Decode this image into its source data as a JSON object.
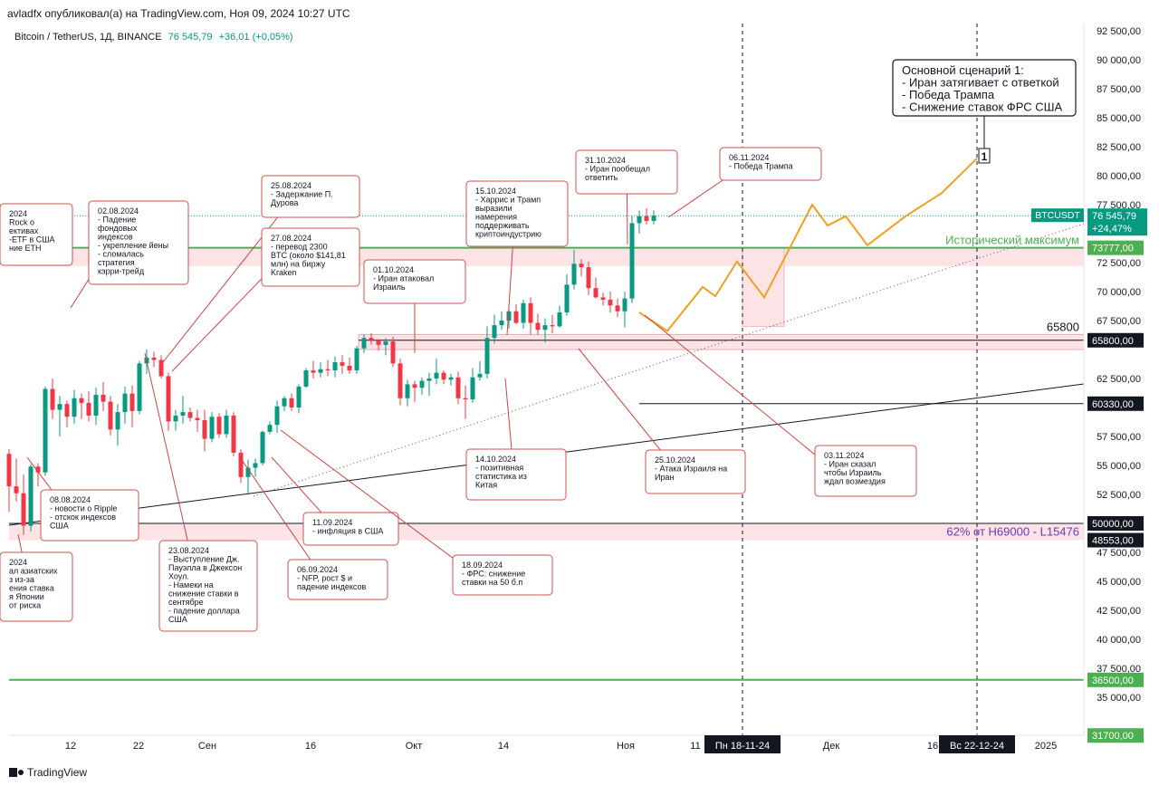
{
  "header": {
    "title": "avladfx опубликовал(а) на TradingView.com, Ноя 09, 2024 10:27 UTC",
    "symbol": "Bitcoin / TetherUS, 1Д, BINANCE",
    "price": "76 545,79",
    "change": "+36,01 (+0,05%)"
  },
  "footer": {
    "brand": "TradingView"
  },
  "chart_data": {
    "type": "candlestick",
    "symbol": "BTCUSDT",
    "ylim": [
      31000,
      94000
    ],
    "y_ticks": [
      "92 500,00",
      "90 000,00",
      "87 500,00",
      "85 000,00",
      "82 500,00",
      "80 000,00",
      "77 500,00",
      "72 500,00",
      "70 000,00",
      "67 500,00",
      "62 500,00",
      "57 500,00",
      "55 000,00",
      "52 500,00",
      "47 500,00",
      "45 000,00",
      "42 500,00",
      "40 000,00",
      "37 500,00",
      "35 000,00"
    ],
    "x_ticks": [
      "12",
      "22",
      "Сен",
      "16",
      "Окт",
      "14",
      "Ноя",
      "11",
      "Дек",
      "16",
      "2025"
    ],
    "x_highlights": [
      "Пн 18-11-24",
      "Вс 22-12-24"
    ],
    "price_badges": [
      {
        "label": "BTCUSDT",
        "value": "76 545,79",
        "extra": "+24,47%",
        "color": "#089981"
      },
      {
        "label": "",
        "value": "73777,00",
        "extra": "",
        "color": "#4caf50"
      },
      {
        "label": "",
        "value": "65800,00",
        "extra": "",
        "color": "#131722"
      },
      {
        "label": "",
        "value": "60330,00",
        "extra": "",
        "color": "#131722"
      },
      {
        "label": "",
        "value": "50000,00",
        "extra": "",
        "color": "#131722"
      },
      {
        "label": "",
        "value": "48553,00",
        "extra": "",
        "color": "#131722"
      },
      {
        "label": "",
        "value": "36500,00",
        "extra": "",
        "color": "#4caf50"
      },
      {
        "label": "",
        "value": "31700,00",
        "extra": "",
        "color": "#4caf50"
      }
    ],
    "level_labels": {
      "ath": "Исторический максимум",
      "level_65800": "65800",
      "fib": "62% от H69000 - L15476"
    },
    "candles": [
      [
        56000,
        56400,
        51000,
        53200
      ],
      [
        53200,
        55600,
        51900,
        52600
      ],
      [
        52600,
        54200,
        49000,
        49800
      ],
      [
        49800,
        55100,
        49300,
        54900
      ],
      [
        54900,
        55200,
        53200,
        54400
      ],
      [
        54400,
        61800,
        54100,
        61600
      ],
      [
        61600,
        62500,
        59000,
        59800
      ],
      [
        59800,
        61000,
        57500,
        60300
      ],
      [
        60300,
        60600,
        58300,
        59200
      ],
      [
        59200,
        61500,
        58600,
        60800
      ],
      [
        60800,
        61200,
        59000,
        60400
      ],
      [
        60400,
        61400,
        58800,
        59300
      ],
      [
        59300,
        61700,
        58500,
        61100
      ],
      [
        61100,
        62200,
        59700,
        60500
      ],
      [
        60500,
        61000,
        57600,
        58100
      ],
      [
        58100,
        60300,
        56700,
        59600
      ],
      [
        59600,
        61800,
        58600,
        61200
      ],
      [
        61200,
        61900,
        58300,
        59700
      ],
      [
        59700,
        64000,
        59400,
        63800
      ],
      [
        63800,
        65000,
        62900,
        64300
      ],
      [
        64300,
        64800,
        63500,
        64100
      ],
      [
        64100,
        64500,
        62500,
        62700
      ],
      [
        62700,
        63000,
        58000,
        58800
      ],
      [
        58800,
        59800,
        58000,
        59300
      ],
      [
        59300,
        61000,
        58600,
        59600
      ],
      [
        59600,
        60000,
        58800,
        59100
      ],
      [
        59100,
        59800,
        57900,
        58900
      ],
      [
        58900,
        59800,
        56200,
        57300
      ],
      [
        57300,
        59600,
        57000,
        59200
      ],
      [
        59200,
        59500,
        57400,
        57700
      ],
      [
        57700,
        59800,
        57400,
        59300
      ],
      [
        59300,
        59600,
        55800,
        56100
      ],
      [
        56100,
        56400,
        53500,
        54000
      ],
      [
        54000,
        55500,
        52600,
        54800
      ],
      [
        54800,
        55600,
        54000,
        55200
      ],
      [
        55200,
        58000,
        55000,
        57900
      ],
      [
        57900,
        58800,
        57700,
        58500
      ],
      [
        58500,
        60600,
        57800,
        60100
      ],
      [
        60100,
        61000,
        59700,
        60800
      ],
      [
        60800,
        61200,
        59700,
        60000
      ],
      [
        60000,
        62000,
        59500,
        61800
      ],
      [
        61800,
        63400,
        61700,
        63200
      ],
      [
        63200,
        64000,
        62500,
        63000
      ],
      [
        63000,
        63900,
        62600,
        63300
      ],
      [
        63300,
        64100,
        62700,
        63200
      ],
      [
        63200,
        64400,
        62600,
        63900
      ],
      [
        63900,
        64500,
        62900,
        63600
      ],
      [
        63600,
        64300,
        62900,
        63200
      ],
      [
        63200,
        65300,
        62900,
        65100
      ],
      [
        65100,
        66300,
        64700,
        66000
      ],
      [
        66000,
        66400,
        65400,
        65800
      ],
      [
        65800,
        65900,
        64900,
        65400
      ],
      [
        65400,
        66000,
        64500,
        65700
      ],
      [
        65700,
        66100,
        63500,
        63800
      ],
      [
        63800,
        64200,
        60200,
        60800
      ],
      [
        60800,
        62400,
        60100,
        62000
      ],
      [
        62000,
        62300,
        60500,
        61700
      ],
      [
        61700,
        62600,
        61100,
        62300
      ],
      [
        62300,
        63000,
        61000,
        62500
      ],
      [
        62500,
        64200,
        62000,
        63000
      ],
      [
        63000,
        63200,
        62000,
        62400
      ],
      [
        62400,
        62900,
        61900,
        62600
      ],
      [
        62600,
        63100,
        60300,
        60800
      ],
      [
        60800,
        61900,
        59000,
        60700
      ],
      [
        60700,
        63400,
        60400,
        62600
      ],
      [
        62600,
        64000,
        62300,
        62900
      ],
      [
        62900,
        67000,
        62500,
        66000
      ],
      [
        66000,
        68000,
        65500,
        67100
      ],
      [
        67100,
        68300,
        66700,
        67500
      ],
      [
        67500,
        68900,
        66800,
        68300
      ],
      [
        68300,
        68900,
        67200,
        67300
      ],
      [
        67300,
        69300,
        66800,
        69000
      ],
      [
        69000,
        69500,
        66300,
        67300
      ],
      [
        67300,
        68100,
        66300,
        66700
      ],
      [
        66700,
        67700,
        65600,
        67100
      ],
      [
        67100,
        68000,
        66400,
        67000
      ],
      [
        67000,
        68800,
        66900,
        68200
      ],
      [
        68200,
        71500,
        67900,
        70600
      ],
      [
        70600,
        73600,
        70200,
        72400
      ],
      [
        72400,
        72800,
        71300,
        72100
      ],
      [
        72100,
        72600,
        69700,
        70300
      ],
      [
        70300,
        71200,
        69400,
        69500
      ],
      [
        69500,
        69900,
        68800,
        69300
      ],
      [
        69300,
        70000,
        68200,
        68800
      ],
      [
        68800,
        69400,
        67800,
        68300
      ],
      [
        68300,
        70000,
        66900,
        69400
      ],
      [
        69400,
        76500,
        69000,
        75900
      ],
      [
        75900,
        77000,
        75000,
        76500
      ],
      [
        76500,
        77200,
        75800,
        76100
      ],
      [
        76100,
        77000,
        75800,
        76546
      ]
    ],
    "projection": [
      [
        69000,
        67500
      ],
      [
        67000,
        66500
      ],
      [
        70000,
        71000
      ],
      [
        71500,
        70000
      ],
      [
        72500,
        71000
      ],
      [
        69500,
        76000
      ],
      [
        77500,
        74500
      ],
      [
        75500,
        76000
      ],
      [
        74000,
        76000
      ],
      [
        77000,
        78000
      ],
      [
        79000,
        80000
      ],
      [
        81000,
        81500
      ]
    ],
    "annotations": [
      {
        "date": "02.08.2024",
        "text": "- Падение\nфондовых\nиндексов\n- укрепление йены\n- сломалась\nстратегия\nкэрри-трейд"
      },
      {
        "date": "08.08.2024",
        "text": "- новости о Ripple\n- отскок индексов\nСША"
      },
      {
        "date": "25.08.2024",
        "text": "- Задержание П.\nДурова"
      },
      {
        "date": "27.08.2024",
        "text": "- перевод 2300\nBTC (около $141,81\nмлн) на биржу\nKraken"
      },
      {
        "date": "23.08.2024",
        "text": "- Выступление Дж.\nПауэлла в Джексон\nХоул.\n- Намеки на\nснижение ставки в\nсентябре\n- падение доллара\nСША"
      },
      {
        "date": "06.09.2024",
        "text": "- NFP, рост $ и\nпадение индексов"
      },
      {
        "date": "11.09.2024",
        "text": "- инфляция в США"
      },
      {
        "date": "18.09.2024",
        "text": "- ФРС: снижение\nставки на 50 б.п"
      },
      {
        "date": "01.10.2024",
        "text": "- Иран атаковал\nИзраиль"
      },
      {
        "date": "15.10.2024",
        "text": "- Харрис и Трамп\nвыразили\nнамерения\nподдерживать\nкриптоиндустрию"
      },
      {
        "date": "14.10.2024",
        "text": "- позитивная\nстатистика из\nКитая"
      },
      {
        "date": "31.10.2024",
        "text": "- Иран пообещал\nответить"
      },
      {
        "date": "06.11.2024",
        "text": "- Победа Трампа"
      },
      {
        "date": "25.10.2024",
        "text": "- Атака Израиля на\nИран"
      },
      {
        "date": "03.11.2024",
        "text": "- Иран сказал\nчтобы Израиль\nждал возмездия"
      },
      {
        "date": "",
        "text": "2024\nRock о\nективах\n-ETF в США\nние ETH"
      },
      {
        "date": "",
        "text": "2024\nал азиатских\nз из-за\nения ставка\nя Японии\nот риска"
      }
    ],
    "scenario": {
      "text": "Основной сценарий 1:\n- Иран затягивает с ответкой\n- Победа Трампа\n- Снижение ставок ФРС США",
      "marker": "1"
    }
  }
}
